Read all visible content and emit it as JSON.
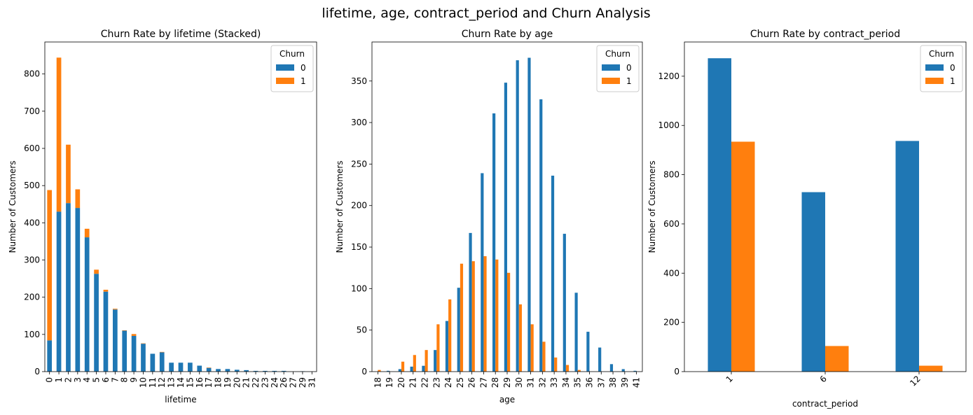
{
  "figure_title": "lifetime, age, contract_period and Churn Analysis",
  "colors": {
    "churn_0": "#1f77b4",
    "churn_1": "#ff7f0e"
  },
  "chart_data": [
    {
      "type": "bar",
      "stacked": true,
      "title": "Churn Rate by lifetime (Stacked)",
      "xlabel": "lifetime",
      "ylabel": "Number of Customers",
      "ylim": [
        0,
        886
      ],
      "yticks": [
        0,
        100,
        200,
        300,
        400,
        500,
        600,
        700,
        800
      ],
      "legend": {
        "title": "Churn",
        "position": "top-right"
      },
      "categories": [
        "0",
        "1",
        "2",
        "3",
        "4",
        "5",
        "6",
        "7",
        "8",
        "9",
        "10",
        "11",
        "12",
        "13",
        "14",
        "15",
        "16",
        "17",
        "18",
        "19",
        "20",
        "21",
        "22",
        "23",
        "24",
        "26",
        "27",
        "29",
        "31"
      ],
      "series": [
        {
          "name": "0",
          "values": [
            84,
            430,
            453,
            440,
            361,
            263,
            215,
            167,
            110,
            96,
            75,
            48,
            52,
            24,
            24,
            24,
            16,
            10,
            7,
            7,
            5,
            4,
            2,
            2,
            2,
            2,
            0,
            1,
            0
          ]
        },
        {
          "name": "1",
          "values": [
            404,
            414,
            157,
            50,
            23,
            11,
            5,
            2,
            1,
            5,
            1,
            0,
            1,
            0,
            0,
            0,
            0,
            1,
            0,
            0,
            0,
            0,
            0,
            0,
            0,
            0,
            0,
            0,
            0
          ]
        }
      ]
    },
    {
      "type": "bar",
      "stacked": false,
      "title": "Churn Rate by age",
      "xlabel": "age",
      "ylabel": "Number of Customers",
      "ylim": [
        0,
        397
      ],
      "yticks": [
        0,
        50,
        100,
        150,
        200,
        250,
        300,
        350
      ],
      "legend": {
        "title": "Churn",
        "position": "top-right"
      },
      "categories": [
        "18",
        "19",
        "20",
        "21",
        "22",
        "23",
        "24",
        "25",
        "26",
        "27",
        "28",
        "29",
        "30",
        "31",
        "32",
        "33",
        "34",
        "35",
        "36",
        "37",
        "38",
        "39",
        "41"
      ],
      "series": [
        {
          "name": "0",
          "values": [
            0,
            1,
            3,
            6,
            7,
            26,
            61,
            101,
            167,
            239,
            311,
            348,
            375,
            378,
            328,
            236,
            166,
            95,
            48,
            29,
            9,
            3,
            1
          ]
        },
        {
          "name": "1",
          "values": [
            2,
            0,
            12,
            20,
            26,
            57,
            87,
            130,
            133,
            139,
            135,
            119,
            81,
            57,
            36,
            17,
            8,
            2,
            0,
            0,
            0,
            0,
            0
          ]
        }
      ]
    },
    {
      "type": "bar",
      "stacked": false,
      "title": "Churn Rate by contract_period",
      "xlabel": "contract_period",
      "ylabel": "Number of Customers",
      "ylim": [
        0,
        1339
      ],
      "yticks": [
        0,
        200,
        400,
        600,
        800,
        1000,
        1200
      ],
      "legend": {
        "title": "Churn",
        "position": "top-right"
      },
      "categories": [
        "1",
        "6",
        "12"
      ],
      "series": [
        {
          "name": "0",
          "values": [
            1273,
            729,
            937
          ]
        },
        {
          "name": "1",
          "values": [
            934,
            104,
            24
          ]
        }
      ]
    }
  ]
}
